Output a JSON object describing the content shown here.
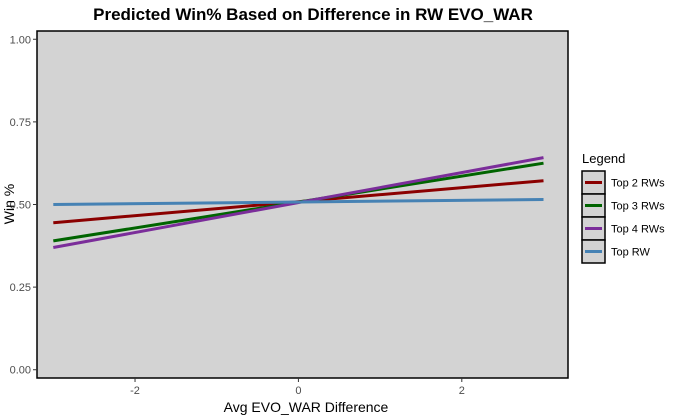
{
  "chart_data": {
    "type": "line",
    "title": "Predicted Win% Based on Difference in RW EVO_WAR",
    "xlabel": "Avg EVO_WAR Difference",
    "ylabel": "Win %",
    "xlim": [
      -3.2,
      3.3
    ],
    "ylim": [
      -0.025,
      1.025
    ],
    "x_ticks": [
      -2,
      0,
      2
    ],
    "x_tick_labels": [
      "-2",
      "0",
      "2"
    ],
    "y_ticks": [
      0,
      0.25,
      0.5,
      0.75,
      1.0
    ],
    "y_tick_labels": [
      "0.00",
      "0.25",
      "0.50",
      "0.75",
      "1.00"
    ],
    "grid": false,
    "panel_background": "#d3d3d3",
    "legend": {
      "title": "Legend",
      "placement": "right"
    },
    "series": [
      {
        "name": "Top 2 RWs",
        "color": "#8b0000",
        "x": [
          -3,
          3
        ],
        "y": [
          0.445,
          0.572
        ]
      },
      {
        "name": "Top 3 RWs",
        "color": "#006400",
        "x": [
          -3,
          3
        ],
        "y": [
          0.39,
          0.625
        ]
      },
      {
        "name": "Top 4 RWs",
        "color": "#7b2d9a",
        "x": [
          -3,
          3
        ],
        "y": [
          0.37,
          0.642
        ]
      },
      {
        "name": "Top RW",
        "color": "#4682b4",
        "x": [
          -3,
          3
        ],
        "y": [
          0.5,
          0.515
        ]
      }
    ]
  }
}
